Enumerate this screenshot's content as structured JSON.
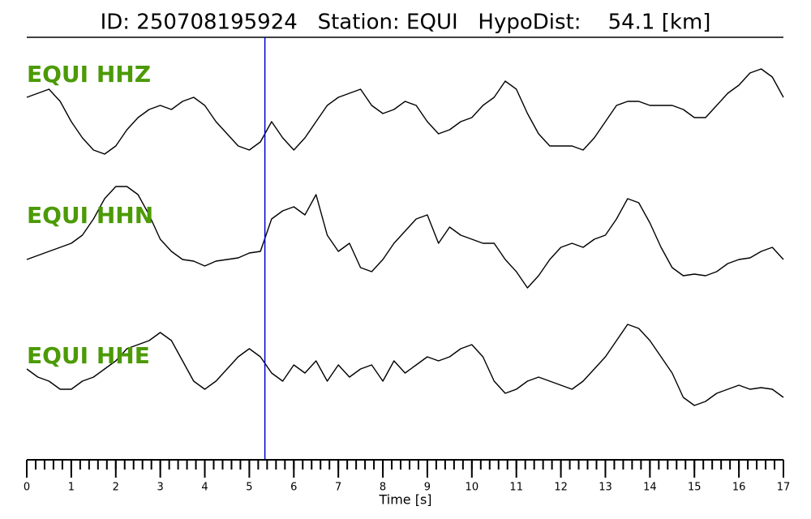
{
  "chart_data": {
    "type": "line",
    "title": "ID: 250708195924   Station: EQUI   HypoDist:    54.1 [km]",
    "x_label": "Time [s]",
    "xlim": [
      0,
      17
    ],
    "xticks": [
      0,
      1,
      2,
      3,
      4,
      5,
      6,
      7,
      8,
      9,
      10,
      11,
      12,
      13,
      14,
      15,
      16,
      17
    ],
    "minor_tick_interval": 0.2,
    "ylim": [
      -8,
      8
    ],
    "marker": {
      "x": 5.35,
      "color": "#0000cc"
    },
    "label_color": "#4c9a06",
    "x": [
      0,
      0.25,
      0.5,
      0.75,
      1,
      1.25,
      1.5,
      1.75,
      2,
      2.25,
      2.5,
      2.75,
      3,
      3.25,
      3.5,
      3.75,
      4,
      4.25,
      4.5,
      4.75,
      5,
      5.25,
      5.5,
      5.75,
      6,
      6.25,
      6.5,
      6.75,
      7,
      7.25,
      7.5,
      7.75,
      8,
      8.25,
      8.5,
      8.75,
      9,
      9.25,
      9.5,
      9.75,
      10,
      10.25,
      10.5,
      10.75,
      11,
      11.25,
      11.5,
      11.75,
      12,
      12.25,
      12.5,
      12.75,
      13,
      13.25,
      13.5,
      13.75,
      14,
      14.25,
      14.5,
      14.75,
      15,
      15.25,
      15.5,
      15.75,
      16,
      16.25,
      16.5,
      16.75,
      17
    ],
    "series": [
      {
        "name": "EQUI HHZ",
        "color": "#000000",
        "values": [
          2.5,
          3,
          3.5,
          2,
          -0.5,
          -2.5,
          -4,
          -4.5,
          -3.5,
          -1.5,
          0,
          1,
          1.5,
          1,
          2,
          2.5,
          1.5,
          -0.5,
          -2,
          -3.5,
          -4,
          -3,
          -0.5,
          -2.5,
          -4,
          -2.5,
          -0.5,
          1.5,
          2.5,
          3,
          3.5,
          1.5,
          0.5,
          1,
          2,
          1.5,
          -0.5,
          -2,
          -1.5,
          -0.5,
          0,
          1.5,
          2.5,
          4.5,
          3.5,
          0.5,
          -2,
          -3.5,
          -3.5,
          -3.5,
          -4,
          -2.5,
          -0.5,
          1.5,
          2,
          2,
          1.5,
          1.5,
          1.5,
          1,
          0,
          0,
          1.5,
          3,
          4,
          5.5,
          6,
          5,
          2.5
        ]
      },
      {
        "name": "EQUI HHN",
        "color": "#000000",
        "values": [
          -3,
          -2.5,
          -2,
          -1.5,
          -1,
          0,
          2,
          4.5,
          6,
          6,
          5,
          2.5,
          -0.5,
          -2,
          -3,
          -3.2,
          -3.8,
          -3.2,
          -3,
          -2.8,
          -2.2,
          -2,
          2,
          3,
          3.5,
          2.5,
          5,
          0,
          -2,
          -1,
          -4,
          -4.5,
          -3,
          -1,
          0.5,
          2,
          2.5,
          -1,
          1,
          0,
          -0.5,
          -1,
          -1,
          -3,
          -4.5,
          -6.5,
          -5,
          -3,
          -1.5,
          -1,
          -1.5,
          -0.5,
          0,
          2,
          4.5,
          4,
          1.5,
          -1.5,
          -4,
          -5,
          -4.8,
          -5,
          -4.5,
          -3.5,
          -3,
          -2.8,
          -2,
          -1.5,
          -3
        ]
      },
      {
        "name": "EQUI HHE",
        "color": "#000000",
        "values": [
          0.5,
          -0.5,
          -1,
          -2,
          -2,
          -1,
          -0.5,
          0.5,
          1.5,
          3,
          3.5,
          4,
          5,
          4,
          1.5,
          -1,
          -2,
          -1,
          0.5,
          2,
          3,
          2,
          0,
          -1,
          1,
          0,
          1.5,
          -1,
          1,
          -0.5,
          0.5,
          1,
          -1,
          1.5,
          0,
          1,
          2,
          1.5,
          2,
          3,
          3.5,
          2,
          -1,
          -2.5,
          -2,
          -1,
          -0.5,
          -1,
          -1.5,
          -2,
          -1,
          0.5,
          2,
          4,
          6,
          5.5,
          4,
          2,
          0,
          -3,
          -4,
          -3.5,
          -2.5,
          -2,
          -1.5,
          -2,
          -1.8,
          -2,
          -3
        ]
      }
    ]
  }
}
